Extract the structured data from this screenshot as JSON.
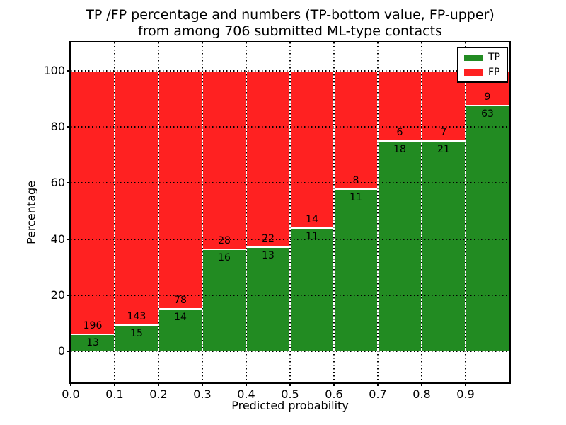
{
  "title": {
    "line1": "TP /FP percentage and numbers (TP-bottom value, FP-upper)",
    "line2": "from among 706 submitted ML-type contacts"
  },
  "axes": {
    "xlabel": "Predicted probability",
    "ylabel": "Percentage",
    "x_tick_labels": [
      "0.0",
      "0.1",
      "0.2",
      "0.3",
      "0.4",
      "0.5",
      "0.6",
      "0.7",
      "0.8",
      "0.9"
    ],
    "x_tick_values": [
      0.0,
      0.1,
      0.2,
      0.3,
      0.4,
      0.5,
      0.6,
      0.7,
      0.8,
      0.9
    ],
    "y_tick_labels": [
      "0",
      "20",
      "40",
      "60",
      "80",
      "100"
    ],
    "y_tick_values": [
      0,
      20,
      40,
      60,
      80,
      100
    ]
  },
  "legend": {
    "items": [
      {
        "label": "TP",
        "color": "#228b22"
      },
      {
        "label": "FP",
        "color": "#ff2121"
      }
    ]
  },
  "colors": {
    "tp_green": "#228b22",
    "fp_red": "#ff2121",
    "grid": "#000000",
    "background": "#ffffff",
    "text": "#000000"
  },
  "chart_data": {
    "type": "bar",
    "stacked": true,
    "title": "TP /FP percentage and numbers (TP-bottom value, FP-upper) from among 706 submitted ML-type contacts",
    "xlabel": "Predicted probability",
    "ylabel": "Percentage",
    "xlim": [
      0.0,
      1.0
    ],
    "ylim": [
      -11,
      110
    ],
    "grid": true,
    "legend_position": "upper right",
    "bar_width": 0.1,
    "bin_starts": [
      0.0,
      0.1,
      0.2,
      0.3,
      0.4,
      0.5,
      0.6,
      0.7,
      0.8,
      0.9
    ],
    "total_contacts": 706,
    "series": [
      {
        "name": "TP",
        "color": "#228b22",
        "counts": [
          13,
          15,
          14,
          16,
          13,
          11,
          11,
          18,
          21,
          63
        ],
        "pct": [
          6.22,
          9.49,
          15.22,
          36.36,
          37.14,
          44.0,
          57.89,
          75.0,
          75.0,
          87.5
        ]
      },
      {
        "name": "FP",
        "color": "#ff2121",
        "counts": [
          196,
          143,
          78,
          28,
          22,
          14,
          8,
          6,
          7,
          9
        ],
        "pct": [
          93.78,
          90.51,
          84.78,
          63.64,
          62.86,
          56.0,
          42.11,
          25.0,
          25.0,
          12.5
        ]
      }
    ]
  }
}
